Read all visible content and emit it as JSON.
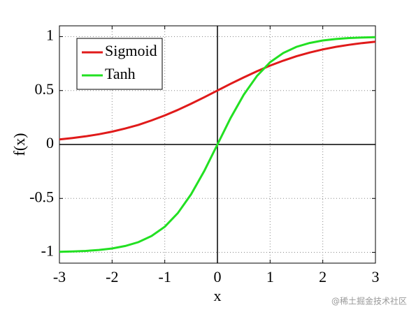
{
  "chart_data": {
    "type": "line",
    "xlabel": "x",
    "ylabel": "f(x)",
    "x": [
      -3,
      -2.75,
      -2.5,
      -2.25,
      -2,
      -1.75,
      -1.5,
      -1.25,
      -1,
      -0.75,
      -0.5,
      -0.25,
      0,
      0.25,
      0.5,
      0.75,
      1,
      1.25,
      1.5,
      1.75,
      2,
      2.25,
      2.5,
      2.75,
      3
    ],
    "series": [
      {
        "name": "Sigmoid",
        "color": "#e01a1a",
        "values": [
          0.047,
          0.06,
          0.076,
          0.095,
          0.119,
          0.148,
          0.182,
          0.223,
          0.269,
          0.321,
          0.378,
          0.438,
          0.5,
          0.562,
          0.622,
          0.679,
          0.731,
          0.777,
          0.818,
          0.852,
          0.881,
          0.905,
          0.924,
          0.94,
          0.953
        ]
      },
      {
        "name": "Tanh",
        "color": "#22e022",
        "values": [
          -0.995,
          -0.992,
          -0.987,
          -0.978,
          -0.964,
          -0.941,
          -0.905,
          -0.848,
          -0.762,
          -0.635,
          -0.462,
          -0.245,
          0,
          0.245,
          0.462,
          0.635,
          0.762,
          0.848,
          0.905,
          0.941,
          0.964,
          0.978,
          0.987,
          0.992,
          0.995
        ]
      }
    ],
    "xlim": [
      -3,
      3
    ],
    "ylim": [
      -1.1,
      1.1
    ],
    "xticks": [
      -3,
      -2,
      -1,
      0,
      1,
      2,
      3
    ],
    "yticks": [
      -1,
      -0.5,
      0,
      0.5,
      1
    ],
    "grid": true,
    "zero_lines": true,
    "legend": "upper left",
    "watermark": "@稀土掘金技术社区"
  }
}
